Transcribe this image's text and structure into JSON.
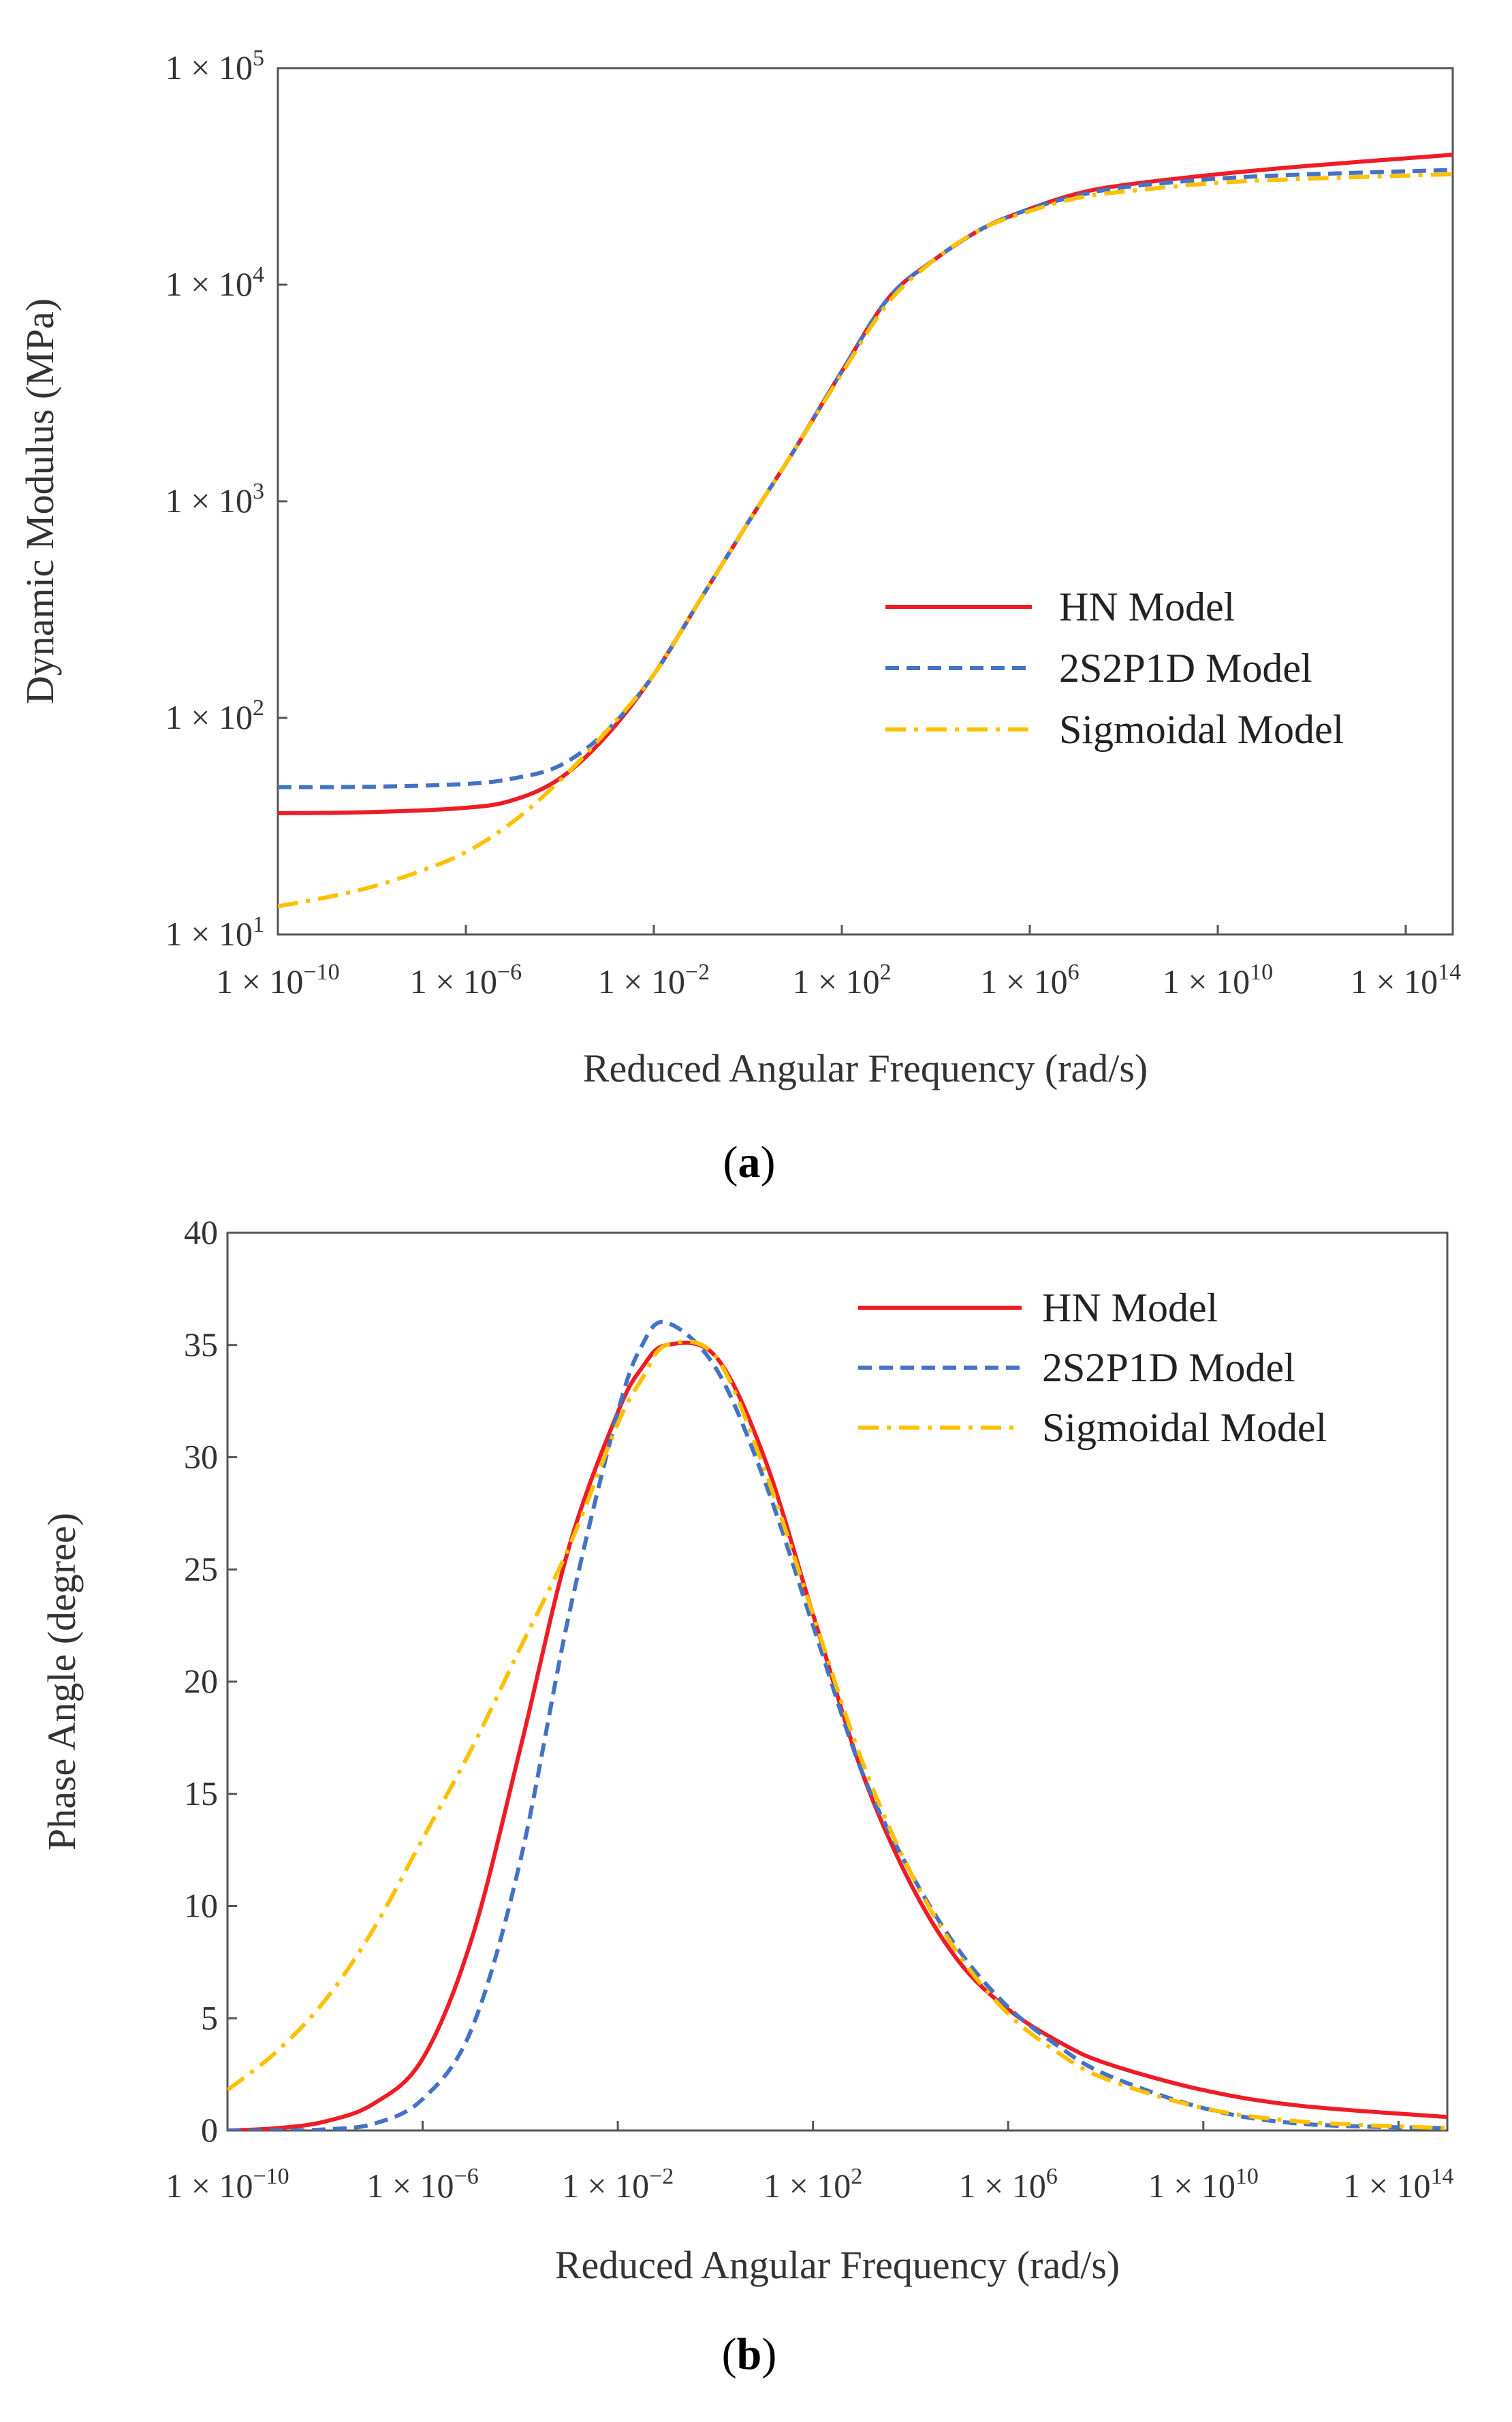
{
  "chart_data": [
    {
      "type": "line",
      "id": "a",
      "panel_label": "(a)",
      "panel_letter": "a",
      "xlabel": "Reduced Angular Frequency (rad/s)",
      "ylabel": "Dynamic Modulus (MPa)",
      "x_scale": "log10",
      "y_scale": "log10",
      "xlim_exp": [
        -10,
        15
      ],
      "ylim_exp": [
        1,
        5
      ],
      "x_ticks": [
        {
          "exp": -10,
          "label": "1 × 10",
          "sup": "−10"
        },
        {
          "exp": -6,
          "label": "1 × 10",
          "sup": "−6"
        },
        {
          "exp": -2,
          "label": "1 × 10",
          "sup": "−2"
        },
        {
          "exp": 2,
          "label": "1 × 10",
          "sup": "2"
        },
        {
          "exp": 6,
          "label": "1 × 10",
          "sup": "6"
        },
        {
          "exp": 10,
          "label": "1 × 10",
          "sup": "10"
        },
        {
          "exp": 14,
          "label": "1 × 10",
          "sup": "14"
        }
      ],
      "y_ticks": [
        {
          "exp": 1,
          "label": "1 × 10",
          "sup": "1"
        },
        {
          "exp": 2,
          "label": "1 × 10",
          "sup": "2"
        },
        {
          "exp": 3,
          "label": "1 × 10",
          "sup": "3"
        },
        {
          "exp": 4,
          "label": "1 × 10",
          "sup": "4"
        },
        {
          "exp": 5,
          "label": "1 × 10",
          "sup": "5"
        }
      ],
      "grid": false,
      "legend_position": "center-right",
      "series": [
        {
          "name": "HN Model",
          "color": "#ee1c25",
          "dash": "solid",
          "x_exp": [
            -10,
            -8,
            -6,
            -5,
            -4,
            -3,
            -2,
            -1,
            0,
            1,
            2,
            3,
            4,
            5,
            6,
            7,
            8,
            10,
            12,
            15
          ],
          "y_exp": [
            1.56,
            1.565,
            1.585,
            1.62,
            1.72,
            1.92,
            2.2,
            2.55,
            2.9,
            3.24,
            3.6,
            3.94,
            4.12,
            4.26,
            4.35,
            4.42,
            4.46,
            4.51,
            4.55,
            4.6
          ]
        },
        {
          "name": "2S2P1D Model",
          "color": "#4472c4",
          "dash": "dashed",
          "x_exp": [
            -10,
            -8,
            -6,
            -5,
            -4,
            -3,
            -2,
            -1,
            0,
            1,
            2,
            3,
            4,
            5,
            6,
            7,
            8,
            10,
            12,
            15
          ],
          "y_exp": [
            1.68,
            1.682,
            1.695,
            1.72,
            1.78,
            1.94,
            2.2,
            2.55,
            2.9,
            3.24,
            3.6,
            3.94,
            4.12,
            4.26,
            4.35,
            4.41,
            4.45,
            4.49,
            4.51,
            4.53
          ]
        },
        {
          "name": "Sigmoidal Model",
          "color": "#ffc000",
          "dash": "dashdot",
          "x_exp": [
            -10,
            -9,
            -8,
            -7,
            -6,
            -5,
            -4,
            -3,
            -2,
            -1,
            0,
            1,
            2,
            3,
            4,
            5,
            6,
            7,
            8,
            10,
            12,
            15
          ],
          "y_exp": [
            1.13,
            1.17,
            1.22,
            1.29,
            1.38,
            1.52,
            1.71,
            1.94,
            2.2,
            2.55,
            2.9,
            3.24,
            3.59,
            3.92,
            4.12,
            4.26,
            4.34,
            4.4,
            4.43,
            4.47,
            4.49,
            4.51
          ]
        }
      ]
    },
    {
      "type": "line",
      "id": "b",
      "panel_label": "(b)",
      "panel_letter": "b",
      "xlabel": "Reduced Angular Frequency (rad/s)",
      "ylabel": "Phase Angle (degree)",
      "x_scale": "log10",
      "y_scale": "linear",
      "xlim_exp": [
        -10,
        15
      ],
      "ylim": [
        0,
        40
      ],
      "x_ticks": [
        {
          "exp": -10,
          "label": "1 × 10",
          "sup": "−10"
        },
        {
          "exp": -6,
          "label": "1 × 10",
          "sup": "−6"
        },
        {
          "exp": -2,
          "label": "1 × 10",
          "sup": "−2"
        },
        {
          "exp": 2,
          "label": "1 × 10",
          "sup": "2"
        },
        {
          "exp": 6,
          "label": "1 × 10",
          "sup": "6"
        },
        {
          "exp": 10,
          "label": "1 × 10",
          "sup": "10"
        },
        {
          "exp": 14,
          "label": "1 × 10",
          "sup": "14"
        }
      ],
      "y_ticks": [
        0,
        5,
        10,
        15,
        20,
        25,
        30,
        35,
        40
      ],
      "grid": false,
      "legend_position": "top-right",
      "series": [
        {
          "name": "HN Model",
          "color": "#ee1c25",
          "dash": "solid",
          "x": [
            -10,
            -9,
            -8,
            -7,
            -6,
            -5,
            -4,
            -3,
            -2,
            -1.5,
            -1,
            0,
            1,
            2,
            3,
            4,
            5,
            6,
            7,
            8,
            10,
            12,
            15
          ],
          "y": [
            0,
            0.1,
            0.4,
            1.2,
            3.2,
            8.5,
            17,
            26,
            32,
            34,
            35,
            34.5,
            30,
            23,
            16,
            11,
            7.5,
            5.4,
            4,
            3,
            1.8,
            1.1,
            0.6
          ]
        },
        {
          "name": "2S2P1D Model",
          "color": "#4472c4",
          "dash": "dashed",
          "x": [
            -10,
            -9,
            -8,
            -7,
            -6,
            -5,
            -4,
            -3,
            -2,
            -1.5,
            -1,
            0,
            1,
            2,
            3,
            4,
            5,
            6,
            7,
            8,
            10,
            12,
            15
          ],
          "y": [
            0,
            0,
            0.05,
            0.3,
            1.4,
            4.5,
            12,
            23,
            32,
            35,
            36,
            34,
            29,
            22.5,
            16,
            11.5,
            8,
            5.5,
            3.8,
            2.5,
            1,
            0.3,
            0.1
          ]
        },
        {
          "name": "Sigmoidal Model",
          "color": "#ffc000",
          "dash": "dashdot",
          "x": [
            -10,
            -9,
            -8,
            -7,
            -6,
            -5,
            -4,
            -3,
            -2,
            -1.5,
            -1,
            0,
            1,
            2,
            3,
            4,
            5,
            6,
            7,
            8,
            10,
            12,
            15
          ],
          "y": [
            1.8,
            3.5,
            5.8,
            9,
            13,
            17,
            21.5,
            26,
            31.5,
            33.5,
            35,
            34.5,
            29.5,
            23,
            16.5,
            11.5,
            7.8,
            5.2,
            3.5,
            2.3,
            1,
            0.4,
            0.1
          ]
        }
      ]
    }
  ]
}
